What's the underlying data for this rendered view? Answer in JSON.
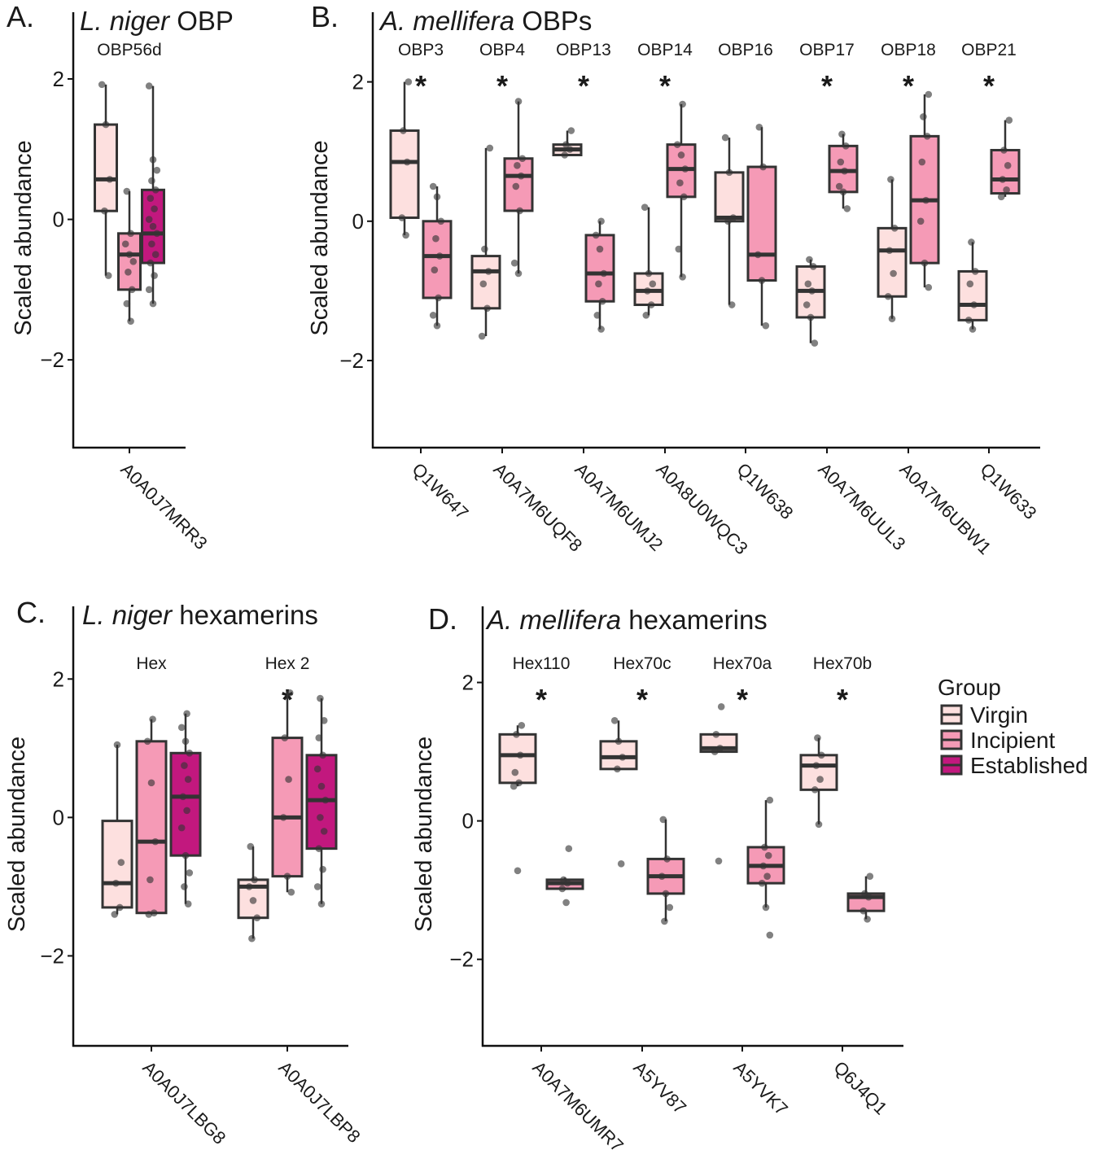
{
  "legend": {
    "title": "Group",
    "items": [
      {
        "label": "Virgin",
        "color": "#fde0df"
      },
      {
        "label": "Incipient",
        "color": "#f59ab6"
      },
      {
        "label": "Established",
        "color": "#c2187e"
      }
    ]
  },
  "chart_data": [
    {
      "type": "boxplot",
      "panel": "A.",
      "title_italic": "L. niger",
      "title_rest": " OBP",
      "ylabel": "Scaled abundance",
      "ylim": [
        -3.25,
        2.95
      ],
      "yticks": [
        -2,
        0,
        2
      ],
      "categories": [
        {
          "protein": "A0A0J7MRR3",
          "name": "OBP56d",
          "significant": false,
          "groups": [
            {
              "group": "Virgin",
              "q1": 0.12,
              "median": 0.57,
              "q3": 1.35,
              "whisker_low": -0.8,
              "whisker_high": 1.92,
              "points": [
                1.92,
                1.35,
                0.57,
                0.12,
                -0.8
              ]
            },
            {
              "group": "Incipient",
              "q1": -1.0,
              "median": -0.5,
              "q3": -0.2,
              "whisker_low": -1.45,
              "whisker_high": 0.4,
              "points": [
                0.4,
                -0.2,
                -0.35,
                -0.5,
                -0.6,
                -0.75,
                -1.0,
                -1.2,
                -1.45
              ]
            },
            {
              "group": "Established",
              "q1": -0.62,
              "median": -0.2,
              "q3": 0.42,
              "whisker_low": -1.2,
              "whisker_high": 1.9,
              "points": [
                1.9,
                0.85,
                0.7,
                0.55,
                0.42,
                0.3,
                0.15,
                0.0,
                -0.1,
                -0.2,
                -0.35,
                -0.5,
                -0.62,
                -0.8,
                -1.0,
                -1.2
              ]
            }
          ]
        }
      ]
    },
    {
      "type": "boxplot",
      "panel": "B.",
      "title_italic": "A. mellifera",
      "title_rest": " OBPs",
      "ylabel": "Scaled abundance",
      "ylim": [
        -3.25,
        3.0
      ],
      "yticks": [
        -2,
        0,
        2
      ],
      "categories": [
        {
          "protein": "Q1W647",
          "name": "OBP3",
          "significant": true,
          "groups": [
            {
              "group": "Virgin",
              "q1": 0.05,
              "median": 0.85,
              "q3": 1.3,
              "whisker_low": -0.2,
              "whisker_high": 2.0,
              "points": [
                2.0,
                1.3,
                0.85,
                0.05,
                -0.2
              ]
            },
            {
              "group": "Incipient",
              "q1": -1.1,
              "median": -0.5,
              "q3": 0.0,
              "whisker_low": -1.5,
              "whisker_high": 0.5,
              "points": [
                0.5,
                0.35,
                0.0,
                -0.25,
                -0.5,
                -0.7,
                -1.1,
                -1.35,
                -1.5
              ]
            }
          ]
        },
        {
          "protein": "A0A7M6UQF8",
          "name": "OBP4",
          "significant": true,
          "groups": [
            {
              "group": "Virgin",
              "q1": -1.25,
              "median": -0.72,
              "q3": -0.5,
              "whisker_low": -1.65,
              "whisker_high": 1.05,
              "points": [
                1.05,
                -0.4,
                -0.72,
                -0.9,
                -1.25,
                -1.65
              ]
            },
            {
              "group": "Incipient",
              "q1": 0.15,
              "median": 0.65,
              "q3": 0.9,
              "whisker_low": -0.75,
              "whisker_high": 1.72,
              "points": [
                1.72,
                0.9,
                0.8,
                0.65,
                0.5,
                0.15,
                -0.6,
                -0.75
              ]
            }
          ]
        },
        {
          "protein": "A0A7M6UMJ2",
          "name": "OBP13",
          "significant": true,
          "groups": [
            {
              "group": "Virgin",
              "q1": 0.95,
              "median": 1.03,
              "q3": 1.1,
              "whisker_low": 0.95,
              "whisker_high": 1.3,
              "points": [
                1.3,
                1.1,
                1.03,
                0.95
              ]
            },
            {
              "group": "Incipient",
              "q1": -1.15,
              "median": -0.75,
              "q3": -0.2,
              "whisker_low": -1.55,
              "whisker_high": 0.0,
              "points": [
                0.0,
                -0.2,
                -0.4,
                -0.75,
                -0.9,
                -1.15,
                -1.35,
                -1.55
              ]
            }
          ]
        },
        {
          "protein": "A0A8U0WQC3",
          "name": "OBP14",
          "significant": true,
          "groups": [
            {
              "group": "Virgin",
              "q1": -1.2,
              "median": -1.0,
              "q3": -0.75,
              "whisker_low": -1.35,
              "whisker_high": 0.2,
              "points": [
                0.2,
                -0.75,
                -0.9,
                -1.0,
                -1.2,
                -1.35
              ]
            },
            {
              "group": "Incipient",
              "q1": 0.35,
              "median": 0.75,
              "q3": 1.1,
              "whisker_low": -0.8,
              "whisker_high": 1.68,
              "points": [
                1.68,
                1.1,
                0.95,
                0.75,
                0.55,
                0.35,
                -0.4,
                -0.8
              ]
            }
          ]
        },
        {
          "protein": "Q1W638",
          "name": "OBP16",
          "significant": false,
          "groups": [
            {
              "group": "Virgin",
              "q1": 0.0,
              "median": 0.05,
              "q3": 0.7,
              "whisker_low": -1.2,
              "whisker_high": 1.2,
              "points": [
                1.2,
                0.7,
                0.05,
                0.0,
                -1.2
              ]
            },
            {
              "group": "Incipient",
              "q1": -0.85,
              "median": -0.48,
              "q3": 0.78,
              "whisker_low": -1.5,
              "whisker_high": 1.35,
              "points": [
                1.35,
                0.78,
                -0.48,
                -0.85,
                -1.5
              ]
            }
          ]
        },
        {
          "protein": "A0A7M6UUL3",
          "name": "OBP17",
          "significant": true,
          "groups": [
            {
              "group": "Virgin",
              "q1": -1.38,
              "median": -1.0,
              "q3": -0.65,
              "whisker_low": -1.75,
              "whisker_high": -0.55,
              "points": [
                -0.55,
                -0.65,
                -0.9,
                -1.0,
                -1.2,
                -1.38,
                -1.75
              ]
            },
            {
              "group": "Incipient",
              "q1": 0.42,
              "median": 0.72,
              "q3": 1.08,
              "whisker_low": 0.18,
              "whisker_high": 1.25,
              "points": [
                1.25,
                1.08,
                0.85,
                0.72,
                0.5,
                0.42,
                0.18
              ]
            }
          ]
        },
        {
          "protein": "A0A7M6UBW1",
          "name": "OBP18",
          "significant": true,
          "groups": [
            {
              "group": "Virgin",
              "q1": -1.08,
              "median": -0.42,
              "q3": -0.1,
              "whisker_low": -1.4,
              "whisker_high": 0.6,
              "points": [
                0.6,
                -0.1,
                -0.42,
                -0.75,
                -1.08,
                -1.4
              ]
            },
            {
              "group": "Incipient",
              "q1": -0.6,
              "median": 0.3,
              "q3": 1.22,
              "whisker_low": -0.95,
              "whisker_high": 1.82,
              "points": [
                1.82,
                1.5,
                1.22,
                0.85,
                0.3,
                0.0,
                -0.6,
                -0.95
              ]
            }
          ]
        },
        {
          "protein": "Q1W633",
          "name": "OBP21",
          "significant": true,
          "groups": [
            {
              "group": "Virgin",
              "q1": -1.42,
              "median": -1.2,
              "q3": -0.72,
              "whisker_low": -1.55,
              "whisker_high": -0.3,
              "points": [
                -0.3,
                -0.72,
                -0.9,
                -1.2,
                -1.42,
                -1.55
              ]
            },
            {
              "group": "Incipient",
              "q1": 0.4,
              "median": 0.6,
              "q3": 1.02,
              "whisker_low": 0.35,
              "whisker_high": 1.45,
              "points": [
                1.45,
                1.02,
                0.8,
                0.6,
                0.45,
                0.35
              ]
            }
          ]
        }
      ]
    },
    {
      "type": "boxplot",
      "panel": "C.",
      "title_italic": "L. niger",
      "title_rest": " hexamerins",
      "ylabel": "Scaled abundance",
      "ylim": [
        -3.3,
        3.05
      ],
      "yticks": [
        -2,
        0,
        2
      ],
      "categories": [
        {
          "protein": "A0A0J7LBG8",
          "name": "Hex",
          "significant": false,
          "groups": [
            {
              "group": "Virgin",
              "q1": -1.3,
              "median": -0.95,
              "q3": -0.05,
              "whisker_low": -1.4,
              "whisker_high": 1.05,
              "points": [
                1.05,
                -0.65,
                -0.95,
                -1.3,
                -1.4
              ]
            },
            {
              "group": "Incipient",
              "q1": -1.38,
              "median": -0.35,
              "q3": 1.1,
              "whisker_low": -1.4,
              "whisker_high": 1.42,
              "points": [
                1.42,
                1.1,
                0.5,
                -0.35,
                -0.9,
                -1.38,
                -1.4
              ]
            },
            {
              "group": "Established",
              "q1": -0.55,
              "median": 0.3,
              "q3": 0.93,
              "whisker_low": -1.25,
              "whisker_high": 1.5,
              "points": [
                1.5,
                1.3,
                1.1,
                0.93,
                0.75,
                0.55,
                0.3,
                0.1,
                -0.15,
                -0.55,
                -0.8,
                -1.0,
                -1.25
              ]
            }
          ]
        },
        {
          "protein": "A0A0J7LBP8",
          "name": "Hex 2",
          "significant": true,
          "groups": [
            {
              "group": "Virgin",
              "q1": -1.45,
              "median": -1.0,
              "q3": -0.9,
              "whisker_low": -1.75,
              "whisker_high": -0.42,
              "points": [
                -0.42,
                -0.9,
                -1.0,
                -1.2,
                -1.45,
                -1.75
              ]
            },
            {
              "group": "Incipient",
              "q1": -0.85,
              "median": 0.0,
              "q3": 1.15,
              "whisker_low": -1.08,
              "whisker_high": 1.8,
              "points": [
                1.8,
                1.15,
                0.55,
                0.0,
                -0.85,
                -1.08
              ]
            },
            {
              "group": "Established",
              "q1": -0.45,
              "median": 0.25,
              "q3": 0.9,
              "whisker_low": -1.25,
              "whisker_high": 1.72,
              "points": [
                1.72,
                1.4,
                1.15,
                0.9,
                0.7,
                0.45,
                0.25,
                0.0,
                -0.2,
                -0.45,
                -0.75,
                -1.0,
                -1.25
              ]
            }
          ]
        }
      ]
    },
    {
      "type": "boxplot",
      "panel": "D.",
      "title_italic": "A. mellifera",
      "title_rest": " hexamerins",
      "ylabel": "Scaled abundance",
      "ylim": [
        -3.25,
        3.1
      ],
      "yticks": [
        -2,
        0,
        2
      ],
      "categories": [
        {
          "protein": "A0A7M6UMR7",
          "name": "Hex110",
          "significant": true,
          "groups": [
            {
              "group": "Virgin",
              "q1": 0.55,
              "median": 0.95,
              "q3": 1.25,
              "whisker_low": 0.5,
              "whisker_high": 1.38,
              "points": [
                1.38,
                1.25,
                0.95,
                0.7,
                0.55,
                0.5,
                -0.72
              ]
            },
            {
              "group": "Incipient",
              "q1": -0.98,
              "median": -0.9,
              "q3": -0.85,
              "whisker_low": -1.0,
              "whisker_high": -0.82,
              "points": [
                -0.4,
                -0.85,
                -0.9,
                -0.98,
                -1.18
              ]
            }
          ]
        },
        {
          "protein": "A5YV87",
          "name": "Hex70c",
          "significant": true,
          "groups": [
            {
              "group": "Virgin",
              "q1": 0.75,
              "median": 0.92,
              "q3": 1.15,
              "whisker_low": 0.75,
              "whisker_high": 1.45,
              "points": [
                1.45,
                1.15,
                0.92,
                0.75,
                -0.62
              ]
            },
            {
              "group": "Incipient",
              "q1": -1.05,
              "median": -0.8,
              "q3": -0.55,
              "whisker_low": -1.45,
              "whisker_high": 0.02,
              "points": [
                0.02,
                -0.55,
                -0.8,
                -1.05,
                -1.25,
                -1.45
              ]
            }
          ]
        },
        {
          "protein": "A5YVK7",
          "name": "Hex70a",
          "significant": true,
          "groups": [
            {
              "group": "Virgin",
              "q1": 1.0,
              "median": 1.05,
              "q3": 1.25,
              "whisker_low": 1.0,
              "whisker_high": 1.25,
              "points": [
                1.65,
                1.25,
                1.05,
                1.0,
                -0.58
              ]
            },
            {
              "group": "Incipient",
              "q1": -0.9,
              "median": -0.65,
              "q3": -0.38,
              "whisker_low": -1.25,
              "whisker_high": 0.3,
              "points": [
                0.3,
                -0.38,
                -0.5,
                -0.65,
                -0.8,
                -0.9,
                -1.25,
                -1.65
              ]
            }
          ]
        },
        {
          "protein": "Q6J4Q1",
          "name": "Hex70b",
          "significant": true,
          "groups": [
            {
              "group": "Virgin",
              "q1": 0.45,
              "median": 0.8,
              "q3": 0.95,
              "whisker_low": -0.05,
              "whisker_high": 1.2,
              "points": [
                1.2,
                0.95,
                0.8,
                0.6,
                0.45,
                -0.05
              ]
            },
            {
              "group": "Incipient",
              "q1": -1.3,
              "median": -1.1,
              "q3": -1.05,
              "whisker_low": -1.42,
              "whisker_high": -0.8,
              "points": [
                -0.8,
                -1.05,
                -1.1,
                -1.3,
                -1.42
              ]
            }
          ]
        }
      ]
    }
  ]
}
